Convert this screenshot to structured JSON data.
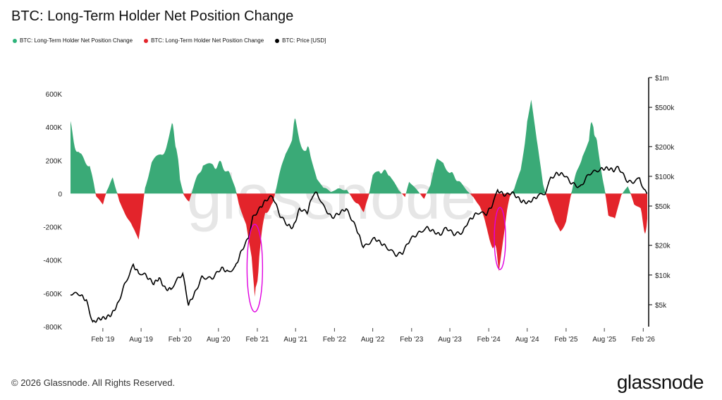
{
  "title": "BTC: Long-Term Holder Net Position Change",
  "legend": [
    {
      "label": "BTC: Long-Term Holder Net Position Change",
      "color": "#2db37a"
    },
    {
      "label": "BTC: Long-Term Holder Net Position Change",
      "color": "#e3242b"
    },
    {
      "label": "BTC: Price [USD]",
      "color": "#000000"
    }
  ],
  "watermark": "glassnode",
  "footer": {
    "copyright": "© 2026 Glassnode. All Rights Reserved.",
    "brand": "glassnode"
  },
  "chart_data": {
    "type": "area",
    "y_left": {
      "ticks": [
        600000,
        400000,
        200000,
        0,
        -200000,
        -400000,
        -600000,
        -800000
      ],
      "tick_labels": [
        "600K",
        "400K",
        "200K",
        "0",
        "-200K",
        "-400K",
        "-600K",
        "-800K"
      ],
      "range": [
        -800000,
        600000
      ]
    },
    "y_right": {
      "scale": "log",
      "ticks": [
        1000000,
        500000,
        200000,
        100000,
        50000,
        20000,
        10000,
        5000
      ],
      "tick_labels": [
        "$1m",
        "$500k",
        "$200k",
        "$100k",
        "$50k",
        "$20k",
        "$10k",
        "$5k"
      ],
      "range": [
        3000,
        1000000
      ]
    },
    "x": {
      "range": [
        "2018-09-01",
        "2026-02-20"
      ],
      "ticks": [
        "2019-02-01",
        "2019-08-01",
        "2020-02-01",
        "2020-08-01",
        "2021-02-01",
        "2021-08-01",
        "2022-02-01",
        "2022-08-01",
        "2023-02-01",
        "2023-08-01",
        "2024-02-01",
        "2024-08-01",
        "2025-02-01",
        "2025-08-01",
        "2026-02-01"
      ],
      "tick_labels": [
        "Feb '19",
        "Aug '19",
        "Feb '20",
        "Aug '20",
        "Feb '21",
        "Aug '21",
        "Feb '22",
        "Aug '22",
        "Feb '23",
        "Aug '23",
        "Feb '24",
        "Aug '24",
        "Feb '25",
        "Aug '25",
        "Feb '26"
      ]
    },
    "net_position_change": [
      {
        "date": "2018-09-01",
        "value": 390000
      },
      {
        "date": "2018-10-15",
        "value": 220000
      },
      {
        "date": "2018-12-01",
        "value": 180000
      },
      {
        "date": "2019-01-01",
        "value": -20000
      },
      {
        "date": "2019-02-01",
        "value": -60000
      },
      {
        "date": "2019-02-20",
        "value": 20000
      },
      {
        "date": "2019-03-20",
        "value": 90000
      },
      {
        "date": "2019-04-20",
        "value": -40000
      },
      {
        "date": "2019-05-20",
        "value": -120000
      },
      {
        "date": "2019-06-20",
        "value": -220000
      },
      {
        "date": "2019-07-20",
        "value": -300000
      },
      {
        "date": "2019-08-01",
        "value": -150000
      },
      {
        "date": "2019-08-20",
        "value": 40000
      },
      {
        "date": "2019-09-20",
        "value": 170000
      },
      {
        "date": "2019-11-01",
        "value": 240000
      },
      {
        "date": "2019-12-10",
        "value": 320000
      },
      {
        "date": "2019-12-25",
        "value": 390000
      },
      {
        "date": "2020-01-15",
        "value": 300000
      },
      {
        "date": "2020-02-01",
        "value": 80000
      },
      {
        "date": "2020-02-20",
        "value": -10000
      },
      {
        "date": "2020-03-15",
        "value": -50000
      },
      {
        "date": "2020-04-10",
        "value": 60000
      },
      {
        "date": "2020-05-20",
        "value": 180000
      },
      {
        "date": "2020-07-01",
        "value": 160000
      },
      {
        "date": "2020-08-15",
        "value": 180000
      },
      {
        "date": "2020-09-20",
        "value": 120000
      },
      {
        "date": "2020-10-20",
        "value": 30000
      },
      {
        "date": "2020-11-10",
        "value": -80000
      },
      {
        "date": "2020-12-10",
        "value": -200000
      },
      {
        "date": "2021-01-05",
        "value": -420000
      },
      {
        "date": "2021-01-20",
        "value": -700000
      },
      {
        "date": "2021-02-10",
        "value": -350000
      },
      {
        "date": "2021-03-10",
        "value": -120000
      },
      {
        "date": "2021-04-15",
        "value": -60000
      },
      {
        "date": "2021-05-15",
        "value": 100000
      },
      {
        "date": "2021-06-15",
        "value": 270000
      },
      {
        "date": "2021-07-15",
        "value": 360000
      },
      {
        "date": "2021-08-01",
        "value": 420000
      },
      {
        "date": "2021-08-20",
        "value": 330000
      },
      {
        "date": "2021-09-20",
        "value": 270000
      },
      {
        "date": "2021-10-15",
        "value": 230000
      },
      {
        "date": "2021-11-10",
        "value": 100000
      },
      {
        "date": "2021-12-10",
        "value": 40000
      },
      {
        "date": "2022-01-15",
        "value": 10000
      },
      {
        "date": "2022-02-15",
        "value": 30000
      },
      {
        "date": "2022-04-01",
        "value": 20000
      },
      {
        "date": "2022-05-15",
        "value": -60000
      },
      {
        "date": "2022-06-20",
        "value": -100000
      },
      {
        "date": "2022-07-10",
        "value": -30000
      },
      {
        "date": "2022-08-01",
        "value": 100000
      },
      {
        "date": "2022-09-01",
        "value": 140000
      },
      {
        "date": "2022-10-20",
        "value": 120000
      },
      {
        "date": "2022-12-01",
        "value": 20000
      },
      {
        "date": "2023-01-01",
        "value": -20000
      },
      {
        "date": "2023-01-20",
        "value": 80000
      },
      {
        "date": "2023-02-20",
        "value": 30000
      },
      {
        "date": "2023-04-01",
        "value": -30000
      },
      {
        "date": "2023-05-01",
        "value": 50000
      },
      {
        "date": "2023-06-01",
        "value": 200000
      },
      {
        "date": "2023-07-01",
        "value": 190000
      },
      {
        "date": "2023-08-01",
        "value": 130000
      },
      {
        "date": "2023-09-15",
        "value": 70000
      },
      {
        "date": "2023-10-20",
        "value": 20000
      },
      {
        "date": "2023-11-20",
        "value": -20000
      },
      {
        "date": "2023-12-20",
        "value": -80000
      },
      {
        "date": "2024-01-20",
        "value": -200000
      },
      {
        "date": "2024-02-20",
        "value": -300000
      },
      {
        "date": "2024-03-20",
        "value": -420000
      },
      {
        "date": "2024-04-15",
        "value": -200000
      },
      {
        "date": "2024-05-10",
        "value": -20000
      },
      {
        "date": "2024-06-01",
        "value": 30000
      },
      {
        "date": "2024-07-01",
        "value": 150000
      },
      {
        "date": "2024-08-01",
        "value": 450000
      },
      {
        "date": "2024-08-20",
        "value": 530000
      },
      {
        "date": "2024-09-15",
        "value": 300000
      },
      {
        "date": "2024-10-15",
        "value": 50000
      },
      {
        "date": "2024-11-10",
        "value": -60000
      },
      {
        "date": "2024-12-10",
        "value": -180000
      },
      {
        "date": "2025-01-05",
        "value": -240000
      },
      {
        "date": "2025-02-01",
        "value": -150000
      },
      {
        "date": "2025-02-20",
        "value": -30000
      },
      {
        "date": "2025-03-20",
        "value": 120000
      },
      {
        "date": "2025-04-20",
        "value": 250000
      },
      {
        "date": "2025-05-20",
        "value": 330000
      },
      {
        "date": "2025-06-10",
        "value": 440000
      },
      {
        "date": "2025-07-01",
        "value": 250000
      },
      {
        "date": "2025-08-01",
        "value": 40000
      },
      {
        "date": "2025-08-20",
        "value": -120000
      },
      {
        "date": "2025-09-20",
        "value": -170000
      },
      {
        "date": "2025-10-20",
        "value": -10000
      },
      {
        "date": "2025-11-20",
        "value": 50000
      },
      {
        "date": "2025-12-20",
        "value": -60000
      },
      {
        "date": "2026-01-20",
        "value": -100000
      },
      {
        "date": "2026-02-10",
        "value": -230000
      },
      {
        "date": "2026-02-20",
        "value": -150000
      }
    ],
    "price": [
      {
        "date": "2018-09-01",
        "value": 6500
      },
      {
        "date": "2018-10-15",
        "value": 6400
      },
      {
        "date": "2018-11-15",
        "value": 5500
      },
      {
        "date": "2018-12-15",
        "value": 3300
      },
      {
        "date": "2019-01-15",
        "value": 3600
      },
      {
        "date": "2019-02-15",
        "value": 3700
      },
      {
        "date": "2019-03-15",
        "value": 4000
      },
      {
        "date": "2019-04-15",
        "value": 5200
      },
      {
        "date": "2019-05-15",
        "value": 8000
      },
      {
        "date": "2019-06-25",
        "value": 12500
      },
      {
        "date": "2019-07-20",
        "value": 10500
      },
      {
        "date": "2019-08-15",
        "value": 10300
      },
      {
        "date": "2019-09-30",
        "value": 8200
      },
      {
        "date": "2019-10-25",
        "value": 9300
      },
      {
        "date": "2019-11-25",
        "value": 7200
      },
      {
        "date": "2019-12-20",
        "value": 7200
      },
      {
        "date": "2020-01-15",
        "value": 8800
      },
      {
        "date": "2020-02-14",
        "value": 10300
      },
      {
        "date": "2020-03-12",
        "value": 5000
      },
      {
        "date": "2020-04-15",
        "value": 6800
      },
      {
        "date": "2020-05-15",
        "value": 9500
      },
      {
        "date": "2020-07-01",
        "value": 9200
      },
      {
        "date": "2020-08-15",
        "value": 11800
      },
      {
        "date": "2020-09-15",
        "value": 10700
      },
      {
        "date": "2020-10-20",
        "value": 12000
      },
      {
        "date": "2020-11-20",
        "value": 18000
      },
      {
        "date": "2020-12-20",
        "value": 23500
      },
      {
        "date": "2021-01-10",
        "value": 38000
      },
      {
        "date": "2021-02-15",
        "value": 48000
      },
      {
        "date": "2021-03-15",
        "value": 58000
      },
      {
        "date": "2021-04-14",
        "value": 63000
      },
      {
        "date": "2021-05-20",
        "value": 40000
      },
      {
        "date": "2021-06-25",
        "value": 32000
      },
      {
        "date": "2021-07-20",
        "value": 30000
      },
      {
        "date": "2021-08-20",
        "value": 47000
      },
      {
        "date": "2021-09-25",
        "value": 43000
      },
      {
        "date": "2021-10-20",
        "value": 64000
      },
      {
        "date": "2021-11-10",
        "value": 68000
      },
      {
        "date": "2021-12-15",
        "value": 48000
      },
      {
        "date": "2022-01-20",
        "value": 38000
      },
      {
        "date": "2022-03-28",
        "value": 47000
      },
      {
        "date": "2022-05-15",
        "value": 30000
      },
      {
        "date": "2022-06-18",
        "value": 19000
      },
      {
        "date": "2022-08-10",
        "value": 23500
      },
      {
        "date": "2022-10-01",
        "value": 19500
      },
      {
        "date": "2022-11-20",
        "value": 16000
      },
      {
        "date": "2022-12-20",
        "value": 16800
      },
      {
        "date": "2023-01-25",
        "value": 23000
      },
      {
        "date": "2023-03-20",
        "value": 28000
      },
      {
        "date": "2023-04-15",
        "value": 30000
      },
      {
        "date": "2023-06-15",
        "value": 25500
      },
      {
        "date": "2023-07-15",
        "value": 30200
      },
      {
        "date": "2023-08-20",
        "value": 26000
      },
      {
        "date": "2023-10-01",
        "value": 27000
      },
      {
        "date": "2023-10-25",
        "value": 34500
      },
      {
        "date": "2023-12-10",
        "value": 43000
      },
      {
        "date": "2024-01-20",
        "value": 41500
      },
      {
        "date": "2024-02-20",
        "value": 52000
      },
      {
        "date": "2024-03-14",
        "value": 72000
      },
      {
        "date": "2024-04-20",
        "value": 64000
      },
      {
        "date": "2024-05-20",
        "value": 69000
      },
      {
        "date": "2024-07-05",
        "value": 56000
      },
      {
        "date": "2024-08-05",
        "value": 54000
      },
      {
        "date": "2024-09-20",
        "value": 63000
      },
      {
        "date": "2024-10-25",
        "value": 68000
      },
      {
        "date": "2024-11-20",
        "value": 95000
      },
      {
        "date": "2024-12-17",
        "value": 106000
      },
      {
        "date": "2025-01-20",
        "value": 105000
      },
      {
        "date": "2025-02-25",
        "value": 86000
      },
      {
        "date": "2025-04-08",
        "value": 77000
      },
      {
        "date": "2025-05-20",
        "value": 106000
      },
      {
        "date": "2025-07-15",
        "value": 118000
      },
      {
        "date": "2025-08-15",
        "value": 121000
      },
      {
        "date": "2025-09-15",
        "value": 115000
      },
      {
        "date": "2025-10-06",
        "value": 124000
      },
      {
        "date": "2025-11-20",
        "value": 88000
      },
      {
        "date": "2025-12-20",
        "value": 88000
      },
      {
        "date": "2026-01-15",
        "value": 95000
      },
      {
        "date": "2026-02-05",
        "value": 72000
      },
      {
        "date": "2026-02-20",
        "value": 67000
      }
    ]
  }
}
